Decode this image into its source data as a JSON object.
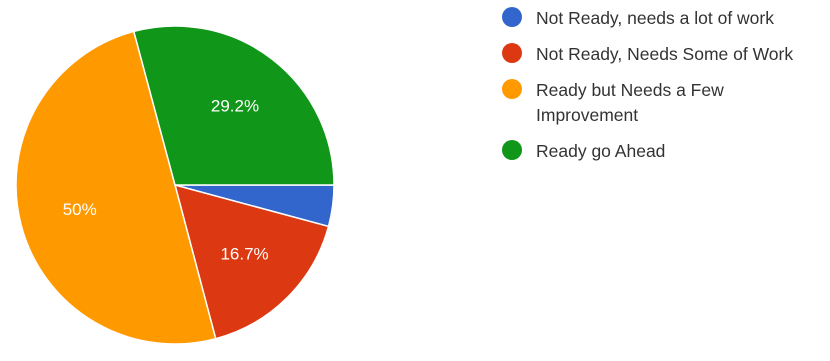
{
  "chart_data": {
    "type": "pie",
    "title": "",
    "slices": [
      {
        "label": "Not Ready, needs a lot of work",
        "value": 4.2,
        "color": "#3366CC",
        "data_label": ""
      },
      {
        "label": "Not Ready, Needs Some of Work",
        "value": 16.7,
        "color": "#DC3912",
        "data_label": "16.7%"
      },
      {
        "label": "Ready but Needs a Few Improvement",
        "value": 50,
        "color": "#FF9900",
        "data_label": "50%"
      },
      {
        "label": "Ready go Ahead",
        "value": 29.2,
        "color": "#109618",
        "data_label": "29.2%"
      }
    ],
    "legend_position": "right",
    "start_angle_deg": 90,
    "direction": "clockwise"
  }
}
